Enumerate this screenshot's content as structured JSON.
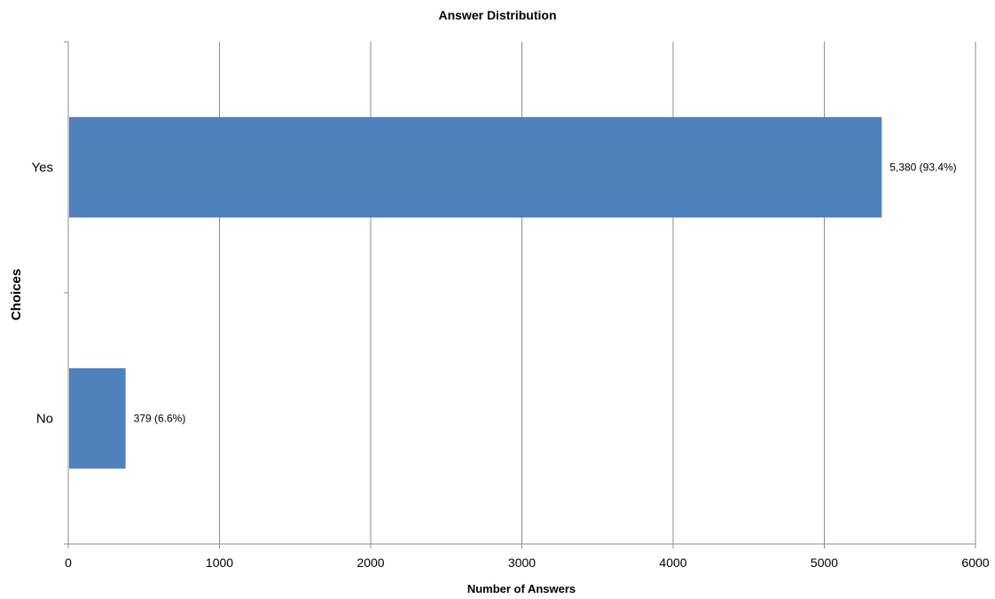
{
  "chart_data": {
    "type": "bar",
    "orientation": "horizontal",
    "title": "Answer Distribution",
    "xlabel": "Number of Answers",
    "ylabel": "Choices",
    "categories": [
      "Yes",
      "No"
    ],
    "values": [
      5380,
      379
    ],
    "data_labels": [
      "5,380 (93.4%)",
      "379 (6.6%)"
    ],
    "xlim": [
      0,
      6000
    ],
    "x_ticks": [
      0,
      1000,
      2000,
      3000,
      4000,
      5000,
      6000
    ],
    "grid": true,
    "legend": "none",
    "bar_color": "#4f81bd"
  }
}
